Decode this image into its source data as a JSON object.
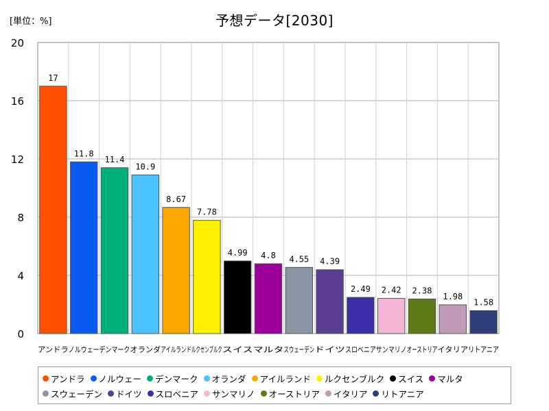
{
  "header": {
    "title": "予想データ[2030]",
    "unit": "[単位：%]"
  },
  "chart_data": {
    "type": "bar",
    "title": "予想データ[2030]",
    "xlabel": "",
    "ylabel": "",
    "unit": "[単位：%]",
    "ylim": [
      0,
      20
    ],
    "yticks": [
      0,
      4,
      8,
      12,
      16,
      20
    ],
    "grid": true,
    "legend_position": "bottom",
    "categories": [
      "アンドラ",
      "ノルウェー",
      "デンマーク",
      "オランダ",
      "アイルランド",
      "ルクセンブルク",
      "スイス",
      "マルタ",
      "スウェーデン",
      "ドイツ",
      "スロベニア",
      "サンマリノ",
      "オーストリア",
      "イタリア",
      "リトアニア"
    ],
    "values": [
      17,
      11.8,
      11.4,
      10.9,
      8.67,
      7.78,
      4.99,
      4.8,
      4.55,
      4.39,
      2.49,
      2.42,
      2.38,
      1.98,
      1.58
    ],
    "value_labels": [
      "17",
      "11.8",
      "11.4",
      "10.9",
      "8.67",
      "7.78",
      "4.99",
      "4.8",
      "4.55",
      "4.39",
      "2.49",
      "2.42",
      "2.38",
      "1.98",
      "1.58"
    ],
    "colors": [
      "#ff4f00",
      "#0a5cf0",
      "#00b07a",
      "#4cc3ff",
      "#f8a800",
      "#fff000",
      "#000000",
      "#9b009b",
      "#8895a2",
      "#5b3d91",
      "#3d2eaa",
      "#f5b6d8",
      "#5c7a16",
      "#c19ab8",
      "#2c3d78"
    ],
    "legend_rows": [
      [
        0,
        1,
        2,
        3,
        4,
        5,
        6,
        7
      ],
      [
        8,
        9,
        10,
        11,
        12,
        13,
        14
      ]
    ]
  }
}
